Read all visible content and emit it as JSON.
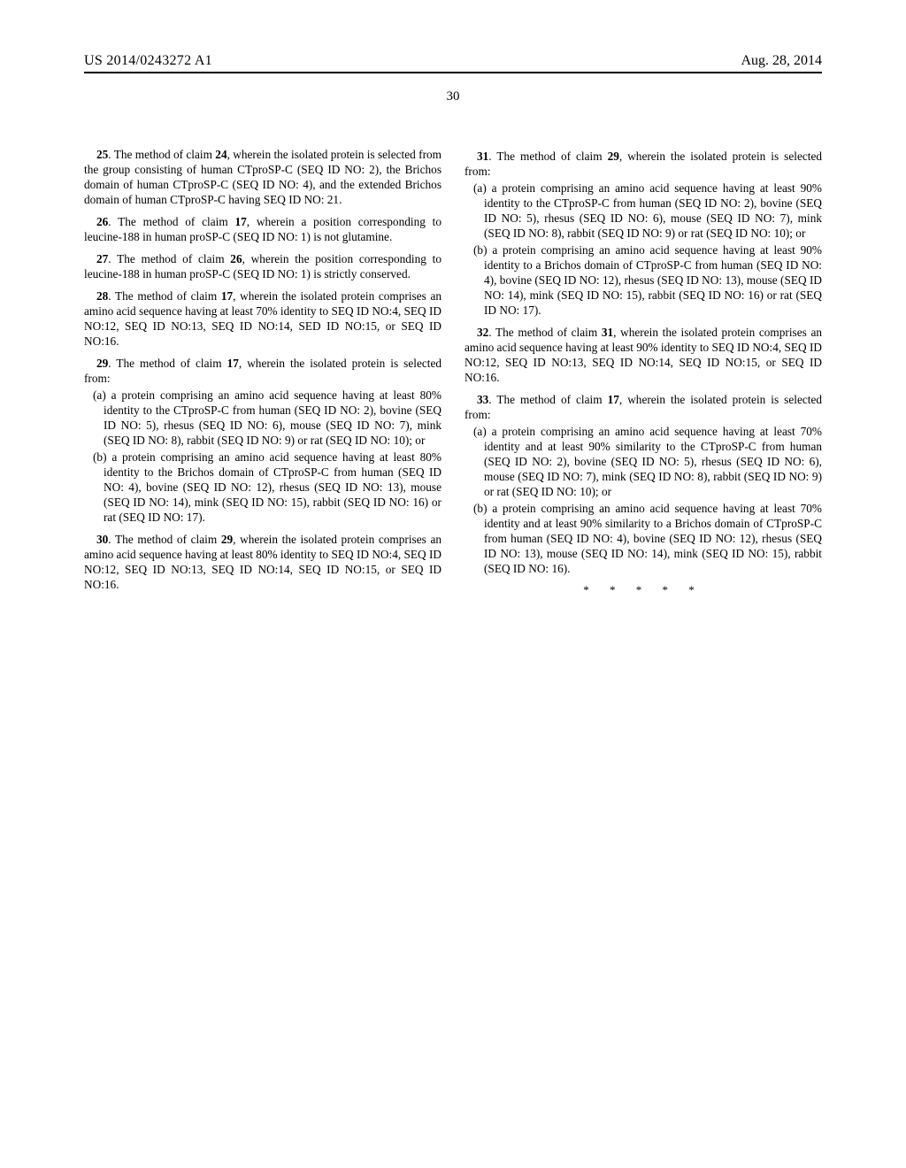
{
  "header": {
    "pub_number": "US 2014/0243272 A1",
    "pub_date": "Aug. 28, 2014",
    "page_number": "30"
  },
  "claims": {
    "c25": {
      "num": "25",
      "ref": "24",
      "text_a": ". The method of claim ",
      "text_b": ", wherein the isolated protein is selected from the group consisting of human CTproSP-C (SEQ ID NO: 2), the Brichos domain of human CTproSP-C (SEQ ID NO: 4), and the extended Brichos domain of human CTproSP-C having SEQ ID NO: 21."
    },
    "c26": {
      "num": "26",
      "ref": "17",
      "text_a": ". The method of claim ",
      "text_b": ", wherein a position corresponding to leucine-188 in human proSP-C (SEQ ID NO: 1) is not glutamine."
    },
    "c27": {
      "num": "27",
      "ref": "26",
      "text_a": ". The method of claim ",
      "text_b": ", wherein the position corresponding to leucine-188 in human proSP-C (SEQ ID NO: 1) is strictly conserved."
    },
    "c28": {
      "num": "28",
      "ref": "17",
      "text_a": ". The method of claim ",
      "text_b": ", wherein the isolated protein comprises an amino acid sequence having at least 70% identity to SEQ ID NO:4, SEQ ID NO:12, SEQ ID NO:13, SEQ ID NO:14, SED ID NO:15, or SEQ ID NO:16."
    },
    "c29": {
      "num": "29",
      "ref": "17",
      "text_a": ". The method of claim ",
      "text_b": ", wherein the isolated protein is selected from:",
      "sub_a": "(a) a protein comprising an amino acid sequence having at least 80% identity to the CTproSP-C from human (SEQ ID NO: 2), bovine (SEQ ID NO: 5), rhesus (SEQ ID NO: 6), mouse (SEQ ID NO: 7), mink (SEQ ID NO: 8), rabbit (SEQ ID NO: 9) or rat (SEQ ID NO: 10); or",
      "sub_b": "(b) a protein comprising an amino acid sequence having at least 80% identity to the Brichos domain of CTproSP-C from human (SEQ ID NO: 4), bovine (SEQ ID NO: 12), rhesus (SEQ ID NO: 13), mouse (SEQ ID NO: 14), mink (SEQ ID NO: 15), rabbit (SEQ ID NO: 16) or rat (SEQ ID NO: 17)."
    },
    "c30": {
      "num": "30",
      "ref": "29",
      "text_a": ". The method of claim ",
      "text_b": ", wherein the isolated protein comprises an amino acid sequence having at least 80% identity to SEQ ID NO:4, SEQ ID NO:12, SEQ ID NO:13, SEQ ID NO:14, SEQ ID NO:15, or SEQ ID NO:16."
    },
    "c31": {
      "num": "31",
      "ref": "29",
      "text_a": ". The method of claim ",
      "text_b": ", wherein the isolated protein is selected from:",
      "sub_a": "(a) a protein comprising an amino acid sequence having at least 90% identity to the CTproSP-C from human (SEQ ID NO: 2), bovine (SEQ ID NO: 5), rhesus (SEQ ID NO: 6), mouse (SEQ ID NO: 7), mink (SEQ ID NO: 8), rabbit (SEQ ID NO: 9) or rat (SEQ ID NO: 10); or",
      "sub_b": "(b) a protein comprising an amino acid sequence having at least 90% identity to a Brichos domain of CTproSP-C from human (SEQ ID NO: 4), bovine (SEQ ID NO: 12), rhesus (SEQ ID NO: 13), mouse (SEQ ID NO: 14), mink (SEQ ID NO: 15), rabbit (SEQ ID NO: 16) or rat (SEQ ID NO: 17)."
    },
    "c32": {
      "num": "32",
      "ref": "31",
      "text_a": ". The method of claim ",
      "text_b": ", wherein the isolated protein comprises an amino acid sequence having at least 90% identity to SEQ ID NO:4, SEQ ID NO:12, SEQ ID NO:13, SEQ ID NO:14, SEQ ID NO:15, or SEQ ID NO:16."
    },
    "c33": {
      "num": "33",
      "ref": "17",
      "text_a": ". The method of claim ",
      "text_b": ", wherein the isolated protein is selected from:",
      "sub_a": "(a) a protein comprising an amino acid sequence having at least 70% identity and at least 90% similarity to the CTproSP-C from human (SEQ ID NO: 2), bovine (SEQ ID NO: 5), rhesus (SEQ ID NO: 6), mouse (SEQ ID NO: 7), mink (SEQ ID NO: 8), rabbit (SEQ ID NO: 9) or rat (SEQ ID NO: 10); or",
      "sub_b": "(b) a protein comprising an amino acid sequence having at least 70% identity and at least 90% similarity to a Brichos domain of CTproSP-C from human (SEQ ID NO: 4), bovine (SEQ ID NO: 12), rhesus (SEQ ID NO: 13), mouse (SEQ ID NO: 14), mink (SEQ ID NO: 15), rabbit (SEQ ID NO: 16)."
    }
  },
  "endmark": "* * * * *"
}
